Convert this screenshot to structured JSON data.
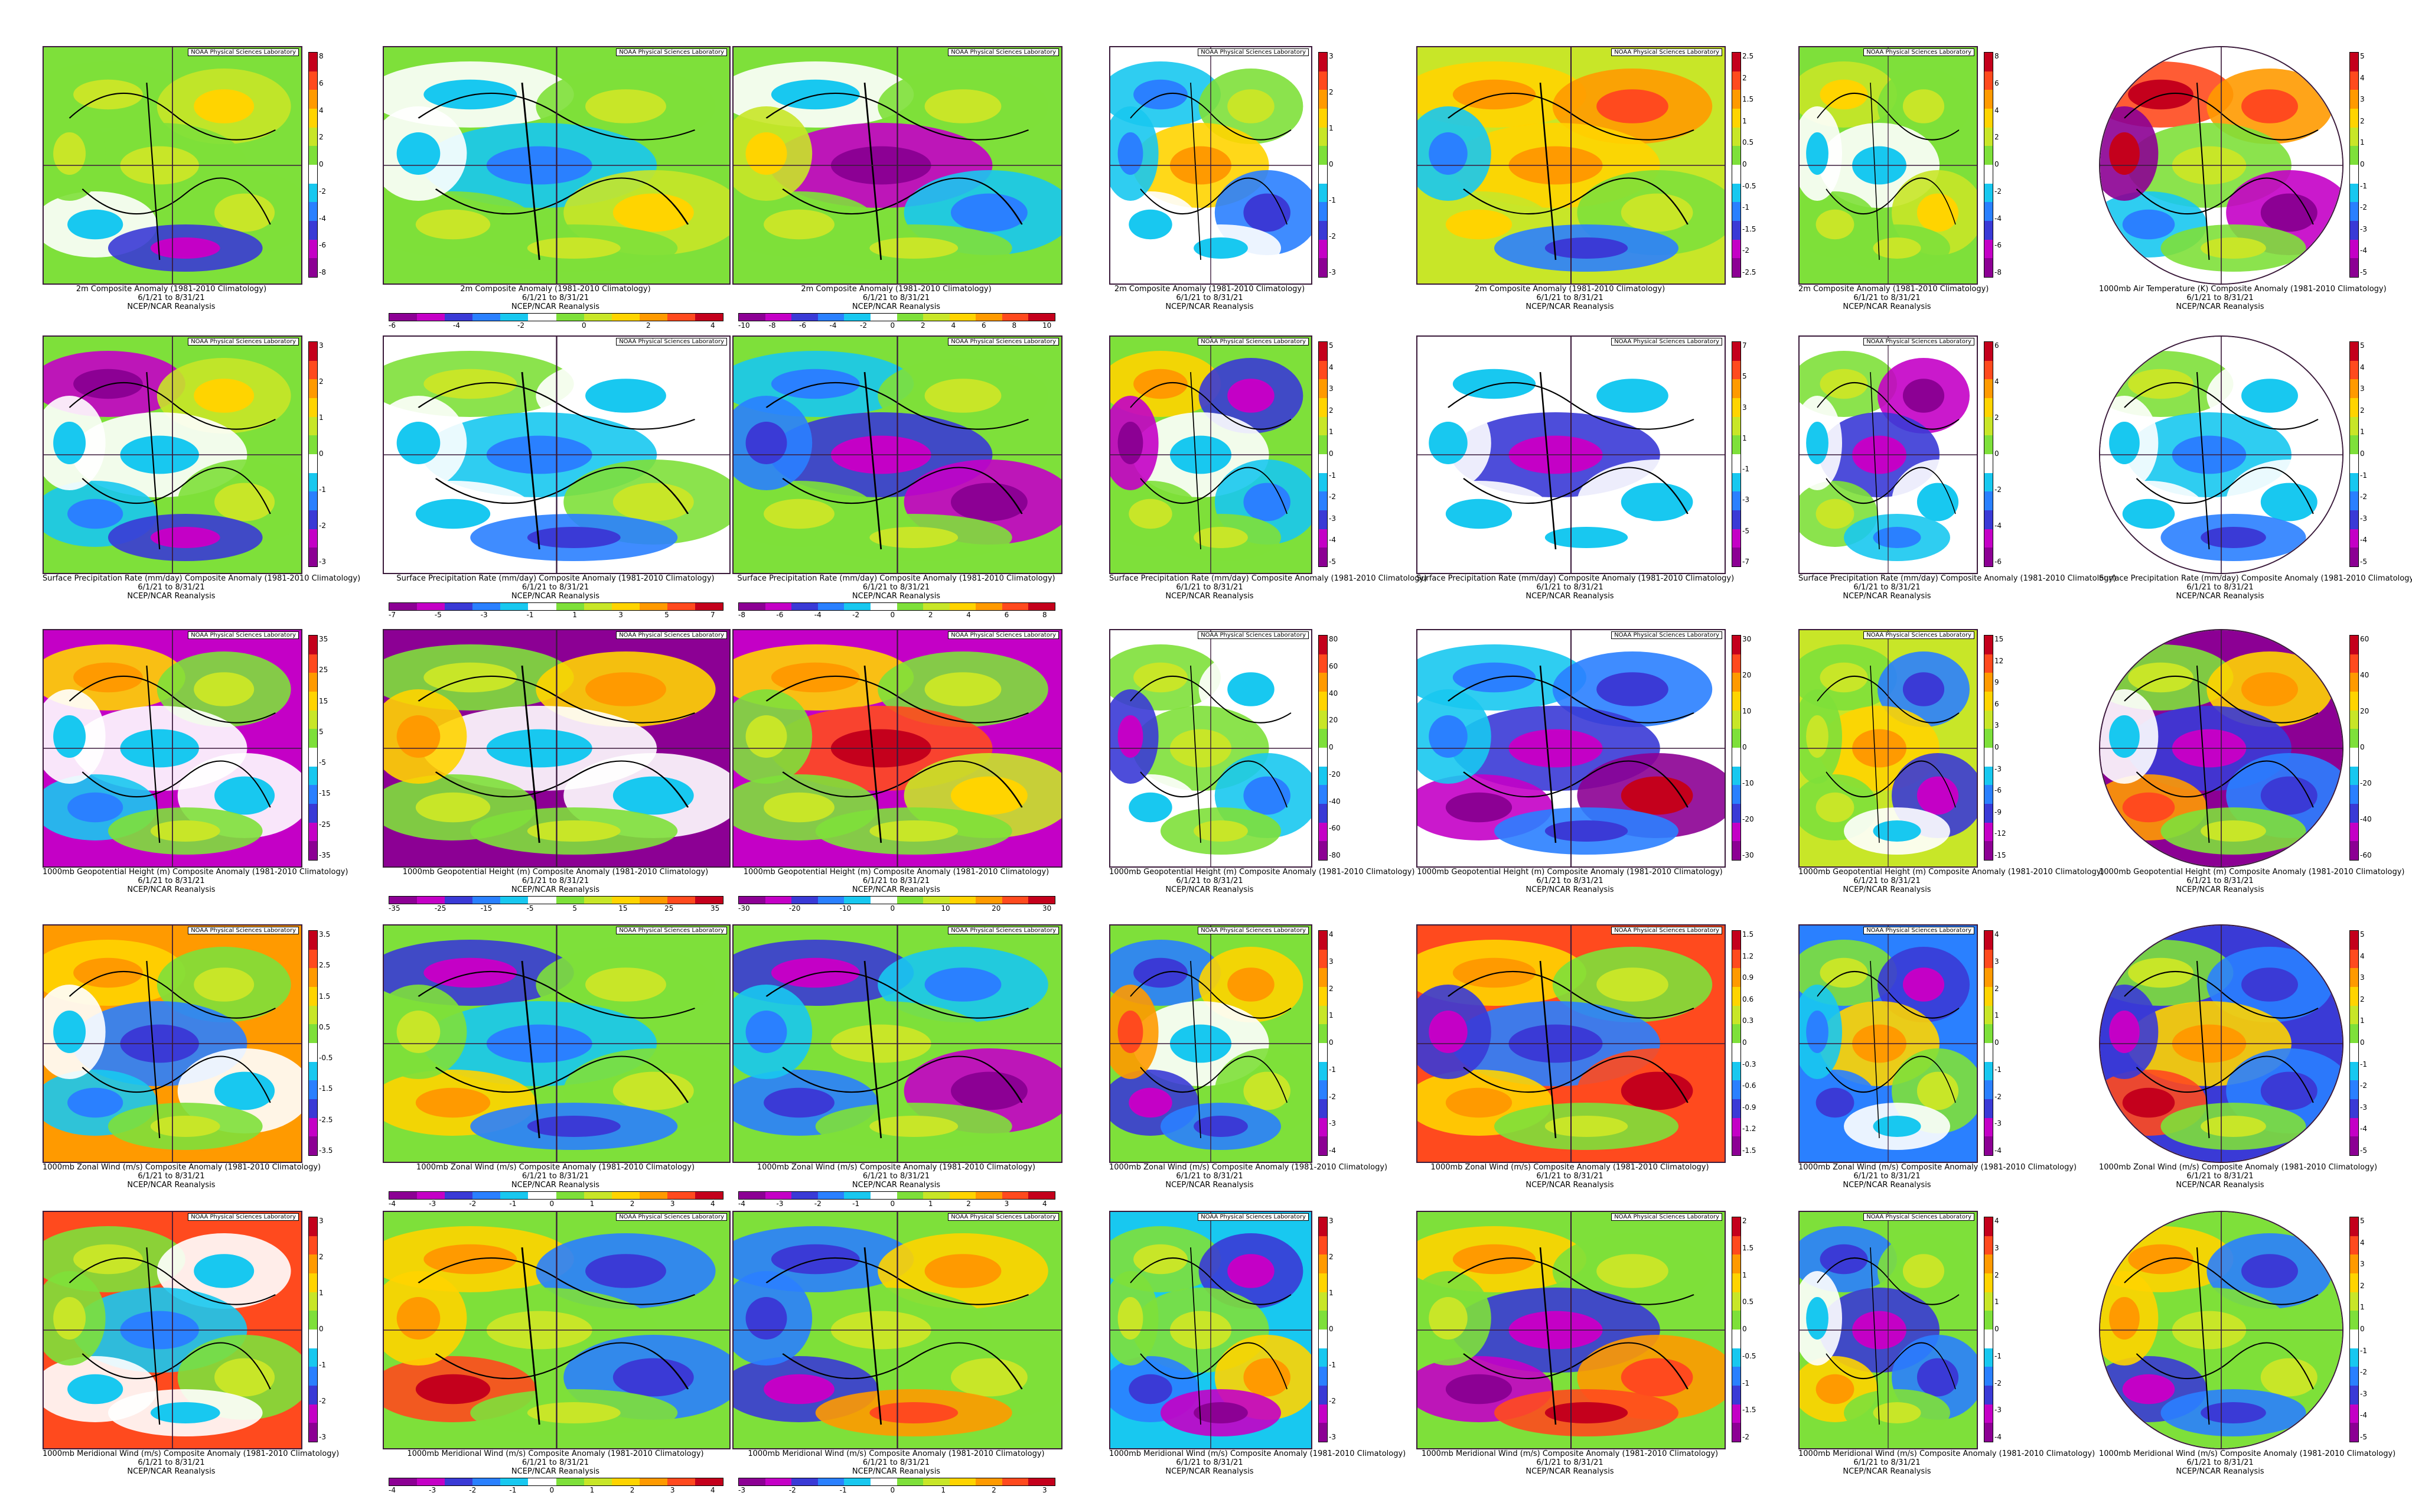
{
  "credit": "NOAA Physical Sciences Laboratory",
  "reanalysis": "NCEP/NCAR Reanalysis",
  "dates": "6/1/21  to  8/31/21",
  "palette": [
    "#8c0094",
    "#c400c6",
    "#3a3ad6",
    "#2a80ff",
    "#18c8f0",
    "#ffffff",
    "#7ee03a",
    "#c8e628",
    "#ffd400",
    "#ff9a00",
    "#ff4a1e",
    "#c4001c"
  ],
  "rows": [
    {
      "name": "2m air temperature",
      "titles": [
        "2m   Composite Anomaly (1981-2010 Climatology)",
        "2m   Composite Anomaly (1981-2010 Climatology)",
        "2m   Composite Anomaly (1981-2010 Climatology)",
        "2m   Composite Anomaly (1981-2010 Climatology)",
        "2m   Composite Anomaly (1981-2010 Climatology)",
        "2m   Composite Anomaly (1981-2010 Climatology)",
        "1000mb Air Temperature (K) Composite Anomaly (1981-2010 Climatology)"
      ],
      "scales": [
        [
          "8",
          "6",
          "4",
          "2",
          "0",
          "-2",
          "-4",
          "-6",
          "-8"
        ],
        [
          "-6",
          "-4",
          "-2",
          "0",
          "2",
          "4"
        ],
        [
          "-10",
          "-8",
          "-6",
          "-4",
          "-2",
          "0",
          "2",
          "4",
          "6",
          "8",
          "10"
        ],
        [
          "3",
          "2",
          "1",
          "0",
          "-1",
          "-2",
          "-3"
        ],
        [
          "2.5",
          "2",
          "1.5",
          "1",
          "0.5",
          "0",
          "-0.5",
          "-1",
          "-1.5",
          "-2",
          "-2.5"
        ],
        [
          "8",
          "6",
          "4",
          "2",
          "0",
          "-2",
          "-4",
          "-6",
          "-8"
        ],
        [
          "5",
          "4",
          "3",
          "2",
          "1",
          "0",
          "-1",
          "-2",
          "-3",
          "-4",
          "-5"
        ]
      ],
      "fills": [
        [
          6,
          6,
          7,
          6,
          5,
          6,
          2,
          6
        ],
        [
          6,
          5,
          6,
          4,
          6,
          7,
          6,
          5
        ],
        [
          6,
          5,
          6,
          1,
          6,
          4,
          6,
          7
        ],
        [
          5,
          4,
          6,
          8,
          5,
          3,
          5,
          4
        ],
        [
          7,
          8,
          9,
          8,
          7,
          6,
          3,
          4
        ],
        [
          6,
          7,
          6,
          5,
          6,
          7,
          6,
          5
        ],
        [
          5,
          10,
          9,
          6,
          4,
          1,
          6,
          0
        ]
      ]
    },
    {
      "name": "Surface precipitation rate",
      "titles": [
        "Surface Precipitation Rate (mm/day) Composite Anomaly (1981-2010 Climatology)",
        "Surface Precipitation Rate (mm/day) Composite Anomaly (1981-2010 Climatology)",
        "Surface Precipitation Rate (mm/day) Composite Anomaly (1981-2010 Climatology)",
        "Surface Precipitation Rate (mm/day) Composite Anomaly (1981-2010 Climatology)",
        "Surface Precipitation Rate (mm/day) Composite Anomaly (1981-2010 Climatology)",
        "Surface Precipitation Rate (mm/day) Composite Anomaly (1981-2010 Climatology)",
        "Surface Precipitation Rate (mm/day) Composite Anomaly (1981-2010 Climatology)"
      ],
      "scales": [
        [
          "3",
          "2",
          "1",
          "0",
          "-1",
          "-2",
          "-3"
        ],
        [
          "-7",
          "-5",
          "-3",
          "-1",
          "1",
          "3",
          "5",
          "7"
        ],
        [
          "-8",
          "-6",
          "-4",
          "-2",
          "0",
          "2",
          "4",
          "6",
          "8"
        ],
        [
          "5",
          "4",
          "3",
          "2",
          "1",
          "0",
          "-1",
          "-2",
          "-3",
          "-4",
          "-5"
        ],
        [
          "7",
          "5",
          "3",
          "1",
          "-1",
          "-3",
          "-5",
          "-7"
        ],
        [
          "6",
          "4",
          "2",
          "0",
          "-2",
          "-4",
          "-6"
        ],
        [
          "5",
          "4",
          "3",
          "2",
          "1",
          "0",
          "-1",
          "-2",
          "-3",
          "-4",
          "-5"
        ]
      ],
      "fills": [
        [
          6,
          1,
          7,
          5,
          4,
          6,
          2,
          5
        ],
        [
          5,
          6,
          5,
          4,
          5,
          6,
          3,
          5
        ],
        [
          6,
          4,
          6,
          2,
          6,
          1,
          6,
          3
        ],
        [
          6,
          8,
          2,
          5,
          6,
          4,
          6,
          1
        ],
        [
          5,
          5,
          5,
          2,
          5,
          5,
          5,
          5
        ],
        [
          5,
          6,
          1,
          2,
          6,
          5,
          4,
          5
        ],
        [
          5,
          6,
          5,
          4,
          5,
          5,
          3,
          5
        ]
      ]
    },
    {
      "name": "1000mb geopotential height",
      "titles": [
        "1000mb Geopotential Height (m) Composite Anomaly (1981-2010 Climatology)",
        "1000mb Geopotential Height (m) Composite Anomaly (1981-2010 Climatology)",
        "1000mb Geopotential Height (m) Composite Anomaly (1981-2010 Climatology)",
        "1000mb Geopotential Height (m) Composite Anomaly (1981-2010 Climatology)",
        "1000mb Geopotential Height (m) Composite Anomaly (1981-2010 Climatology)",
        "1000mb Geopotential Height (m) Composite Anomaly (1981-2010 Climatology)",
        "1000mb Geopotential Height (m) Composite Anomaly (1981-2010 Climatology)"
      ],
      "scales": [
        [
          "35",
          "25",
          "15",
          "5",
          "-5",
          "-15",
          "-25",
          "-35"
        ],
        [
          "-35",
          "-25",
          "-15",
          "-5",
          "5",
          "15",
          "25",
          "35"
        ],
        [
          "-30",
          "-20",
          "-10",
          "0",
          "10",
          "20",
          "30"
        ],
        [
          "80",
          "60",
          "40",
          "20",
          "0",
          "-20",
          "-40",
          "-60",
          "-80"
        ],
        [
          "30",
          "20",
          "10",
          "0",
          "-10",
          "-20",
          "-30"
        ],
        [
          "15",
          "12",
          "9",
          "6",
          "3",
          "0",
          "-3",
          "-6",
          "-9",
          "-12",
          "-15"
        ],
        [
          "60",
          "40",
          "20",
          "0",
          "-20",
          "-40",
          "-60"
        ]
      ],
      "fills": [
        [
          1,
          8,
          6,
          5,
          4,
          5,
          6,
          5
        ],
        [
          0,
          6,
          8,
          5,
          6,
          5,
          6,
          8
        ],
        [
          1,
          8,
          6,
          10,
          6,
          7,
          6,
          6
        ],
        [
          5,
          6,
          5,
          6,
          5,
          4,
          6,
          2
        ],
        [
          5,
          4,
          3,
          2,
          1,
          0,
          3,
          4
        ],
        [
          7,
          6,
          3,
          8,
          6,
          2,
          5,
          6
        ],
        [
          0,
          6,
          8,
          2,
          9,
          3,
          6,
          5
        ]
      ]
    },
    {
      "name": "1000mb zonal wind",
      "titles": [
        "1000mb Zonal Wind (m/s) Composite Anomaly (1981-2010 Climatology)",
        "1000mb Zonal Wind (m/s) Composite Anomaly (1981-2010 Climatology)",
        "1000mb Zonal Wind (m/s) Composite Anomaly (1981-2010 Climatology)",
        "1000mb Zonal Wind (m/s) Composite Anomaly (1981-2010 Climatology)",
        "1000mb Zonal Wind (m/s) Composite Anomaly (1981-2010 Climatology)",
        "1000mb Zonal Wind (m/s) Composite Anomaly (1981-2010 Climatology)",
        "1000mb Zonal Wind (m/s) Composite Anomaly (1981-2010 Climatology)"
      ],
      "scales": [
        [
          "3.5",
          "2.5",
          "1.5",
          "0.5",
          "-0.5",
          "-1.5",
          "-2.5",
          "-3.5"
        ],
        [
          "-4",
          "-3",
          "-2",
          "-1",
          "0",
          "1",
          "2",
          "3",
          "4"
        ],
        [
          "-4",
          "-3",
          "-2",
          "-1",
          "0",
          "1",
          "2",
          "3",
          "4"
        ],
        [
          "4",
          "3",
          "2",
          "1",
          "0",
          "-1",
          "-2",
          "-3",
          "-4"
        ],
        [
          "1.5",
          "1.2",
          "0.9",
          "0.6",
          "0.3",
          "0",
          "-0.3",
          "-0.6",
          "-0.9",
          "-1.2",
          "-1.5"
        ],
        [
          "4",
          "3",
          "2",
          "1",
          "0",
          "-1",
          "-2",
          "-3",
          "-4"
        ],
        [
          "5",
          "4",
          "3",
          "2",
          "1",
          "0",
          "-1",
          "-2",
          "-3",
          "-4",
          "-5"
        ]
      ],
      "fills": [
        [
          9,
          8,
          6,
          3,
          4,
          5,
          6,
          5
        ],
        [
          6,
          2,
          6,
          4,
          8,
          6,
          3,
          6
        ],
        [
          6,
          2,
          4,
          6,
          3,
          1,
          6,
          4
        ],
        [
          6,
          3,
          8,
          5,
          2,
          6,
          3,
          9
        ],
        [
          10,
          8,
          6,
          3,
          8,
          10,
          6,
          2
        ],
        [
          3,
          6,
          2,
          8,
          3,
          6,
          5,
          4
        ],
        [
          2,
          6,
          3,
          8,
          10,
          3,
          6,
          2
        ]
      ]
    },
    {
      "name": "1000mb meridional wind",
      "titles": [
        "1000mb Meridional Wind (m/s) Composite Anomaly (1981-2010 Climatology)",
        "1000mb Meridional Wind (m/s) Composite Anomaly (1981-2010 Climatology)",
        "1000mb Meridional Wind (m/s) Composite Anomaly (1981-2010 Climatology)",
        "1000mb Meridional Wind (m/s) Composite Anomaly (1981-2010 Climatology)",
        "1000mb Meridional Wind (m/s) Composite Anomaly (1981-2010 Climatology)",
        "1000mb Meridional Wind (m/s) Composite Anomaly (1981-2010 Climatology)",
        "1000mb Meridional Wind (m/s) Composite Anomaly (1981-2010 Climatology)"
      ],
      "scales": [
        [
          "3",
          "2",
          "1",
          "0",
          "-1",
          "-2",
          "-3"
        ],
        [
          "-4",
          "-3",
          "-2",
          "-1",
          "0",
          "1",
          "2",
          "3",
          "4"
        ],
        [
          "-3",
          "-2",
          "-1",
          "0",
          "1",
          "2",
          "3"
        ],
        [
          "3",
          "2",
          "1",
          "0",
          "-1",
          "-2",
          "-3"
        ],
        [
          "2",
          "1.5",
          "1",
          "0.5",
          "0",
          "-0.5",
          "-1",
          "-1.5",
          "-2"
        ],
        [
          "4",
          "3",
          "2",
          "1",
          "0",
          "-1",
          "-2",
          "-3",
          "-4"
        ],
        [
          "5",
          "4",
          "3",
          "2",
          "1",
          "0",
          "-1",
          "-2",
          "-3",
          "-4",
          "-5"
        ]
      ],
      "fills": [
        [
          10,
          6,
          5,
          4,
          5,
          6,
          5,
          6
        ],
        [
          6,
          8,
          3,
          6,
          10,
          3,
          6,
          8
        ],
        [
          6,
          3,
          8,
          6,
          2,
          6,
          9,
          3
        ],
        [
          4,
          6,
          2,
          6,
          3,
          8,
          1,
          6
        ],
        [
          6,
          8,
          6,
          2,
          1,
          9,
          10,
          6
        ],
        [
          6,
          3,
          6,
          2,
          8,
          3,
          6,
          5
        ],
        [
          6,
          8,
          3,
          6,
          2,
          6,
          3,
          8
        ]
      ]
    }
  ]
}
